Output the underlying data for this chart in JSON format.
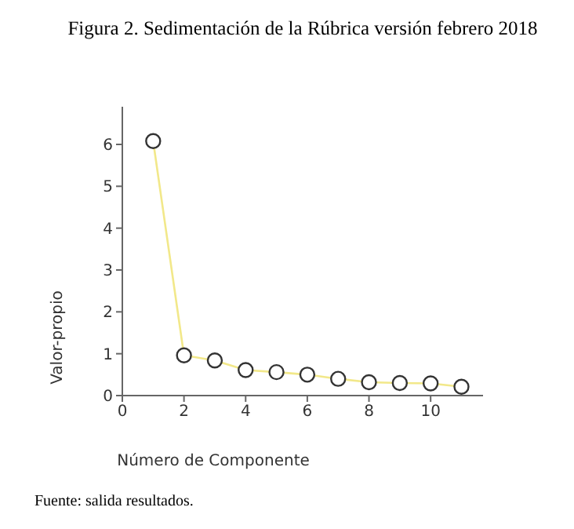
{
  "chart_data": {
    "type": "line",
    "title": "Figura 2. Sedimentación de la Rúbrica versión febrero 2018",
    "xlabel": "Número de Componente",
    "ylabel": "Valor-propio",
    "annotations": [
      "Fuente: salida resultados."
    ],
    "x": [
      1,
      2,
      3,
      4,
      5,
      6,
      7,
      8,
      9,
      10,
      11
    ],
    "series": [
      {
        "color": "#f2e88a",
        "values": [
          6.08,
          0.96,
          0.84,
          0.61,
          0.56,
          0.5,
          0.4,
          0.32,
          0.3,
          0.29,
          0.21
        ]
      }
    ],
    "xlim": [
      0,
      11.7
    ],
    "xticks": [
      0,
      2,
      4,
      6,
      8,
      10
    ],
    "ylim": [
      0,
      6.9
    ],
    "yticks": [
      0,
      1,
      2,
      3,
      4,
      5,
      6
    ],
    "marker": "circle",
    "grid": false,
    "legend": false
  }
}
